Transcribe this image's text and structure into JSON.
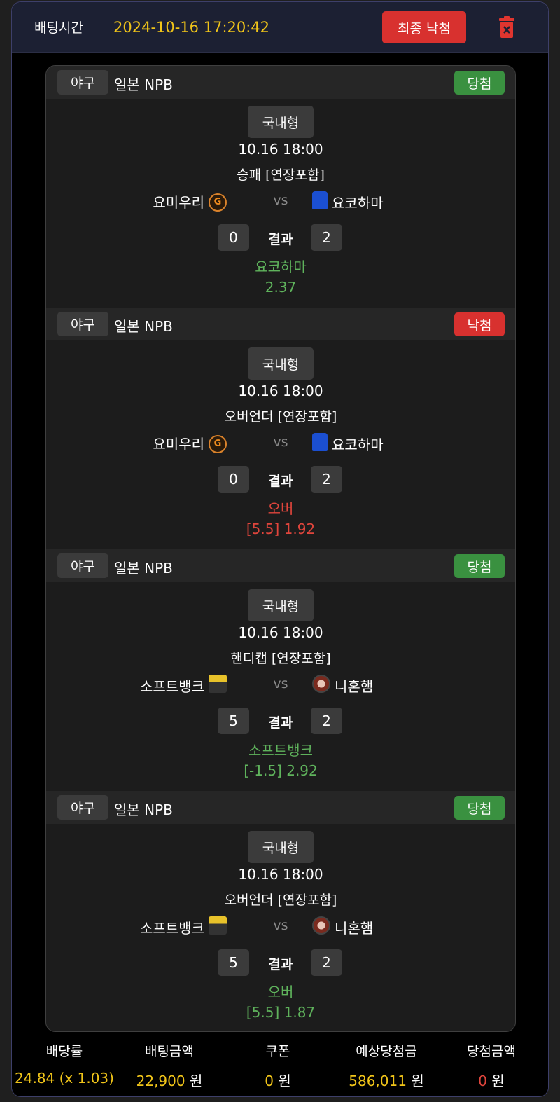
{
  "header": {
    "bet_time_label": "배팅시간",
    "bet_time": "2024-10-16 17:20:42",
    "final_button": "최종 낙첨",
    "delete_icon": "trash-icon"
  },
  "colors": {
    "win": "#3a9140",
    "lose": "#d8312f",
    "pick_win": "#5fb35c",
    "pick_lose": "#e0453c",
    "accent": "#f0c419"
  },
  "bets": [
    {
      "sport": "야구",
      "league": "일본 NPB",
      "status": "당첨",
      "result": "win",
      "type": "국내형",
      "date": "10.16 18:00",
      "market": "승패 [연장포함]",
      "home": "요미우리",
      "away": "요코하마",
      "home_logo": "giants-logo",
      "away_logo": "baystars-jersey-logo",
      "vs": "vs",
      "home_score": "0",
      "away_score": "2",
      "result_label": "결과",
      "pick": "요코하마",
      "odds": "2.37"
    },
    {
      "sport": "야구",
      "league": "일본 NPB",
      "status": "낙첨",
      "result": "lose",
      "type": "국내형",
      "date": "10.16 18:00",
      "market": "오버언더 [연장포함]",
      "home": "요미우리",
      "away": "요코하마",
      "home_logo": "giants-logo",
      "away_logo": "baystars-jersey-logo",
      "vs": "vs",
      "home_score": "0",
      "away_score": "2",
      "result_label": "결과",
      "pick": "오버",
      "odds": "[5.5] 1.92"
    },
    {
      "sport": "야구",
      "league": "일본 NPB",
      "status": "당첨",
      "result": "win",
      "type": "국내형",
      "date": "10.16 18:00",
      "market": "핸디캡 [연장포함]",
      "home": "소프트뱅크",
      "away": "니혼햄",
      "home_logo": "hawks-logo",
      "away_logo": "fighters-logo",
      "vs": "vs",
      "home_score": "5",
      "away_score": "2",
      "result_label": "결과",
      "pick": "소프트뱅크",
      "odds": "[-1.5] 2.92"
    },
    {
      "sport": "야구",
      "league": "일본 NPB",
      "status": "당첨",
      "result": "win",
      "type": "국내형",
      "date": "10.16 18:00",
      "market": "오버언더 [연장포함]",
      "home": "소프트뱅크",
      "away": "니혼햄",
      "home_logo": "hawks-logo",
      "away_logo": "fighters-logo",
      "vs": "vs",
      "home_score": "5",
      "away_score": "2",
      "result_label": "결과",
      "pick": "오버",
      "odds": "[5.5] 1.87"
    }
  ],
  "summary": [
    {
      "label": "배당률",
      "value": "24.84 (x 1.03)",
      "unit": ""
    },
    {
      "label": "배팅금액",
      "value": "22,900",
      "unit": "원"
    },
    {
      "label": "쿠폰",
      "value": "0",
      "unit": "원"
    },
    {
      "label": "예상당첨금",
      "value": "586,011",
      "unit": "원"
    },
    {
      "label": "당첨금액",
      "value": "0",
      "unit": "원"
    }
  ]
}
